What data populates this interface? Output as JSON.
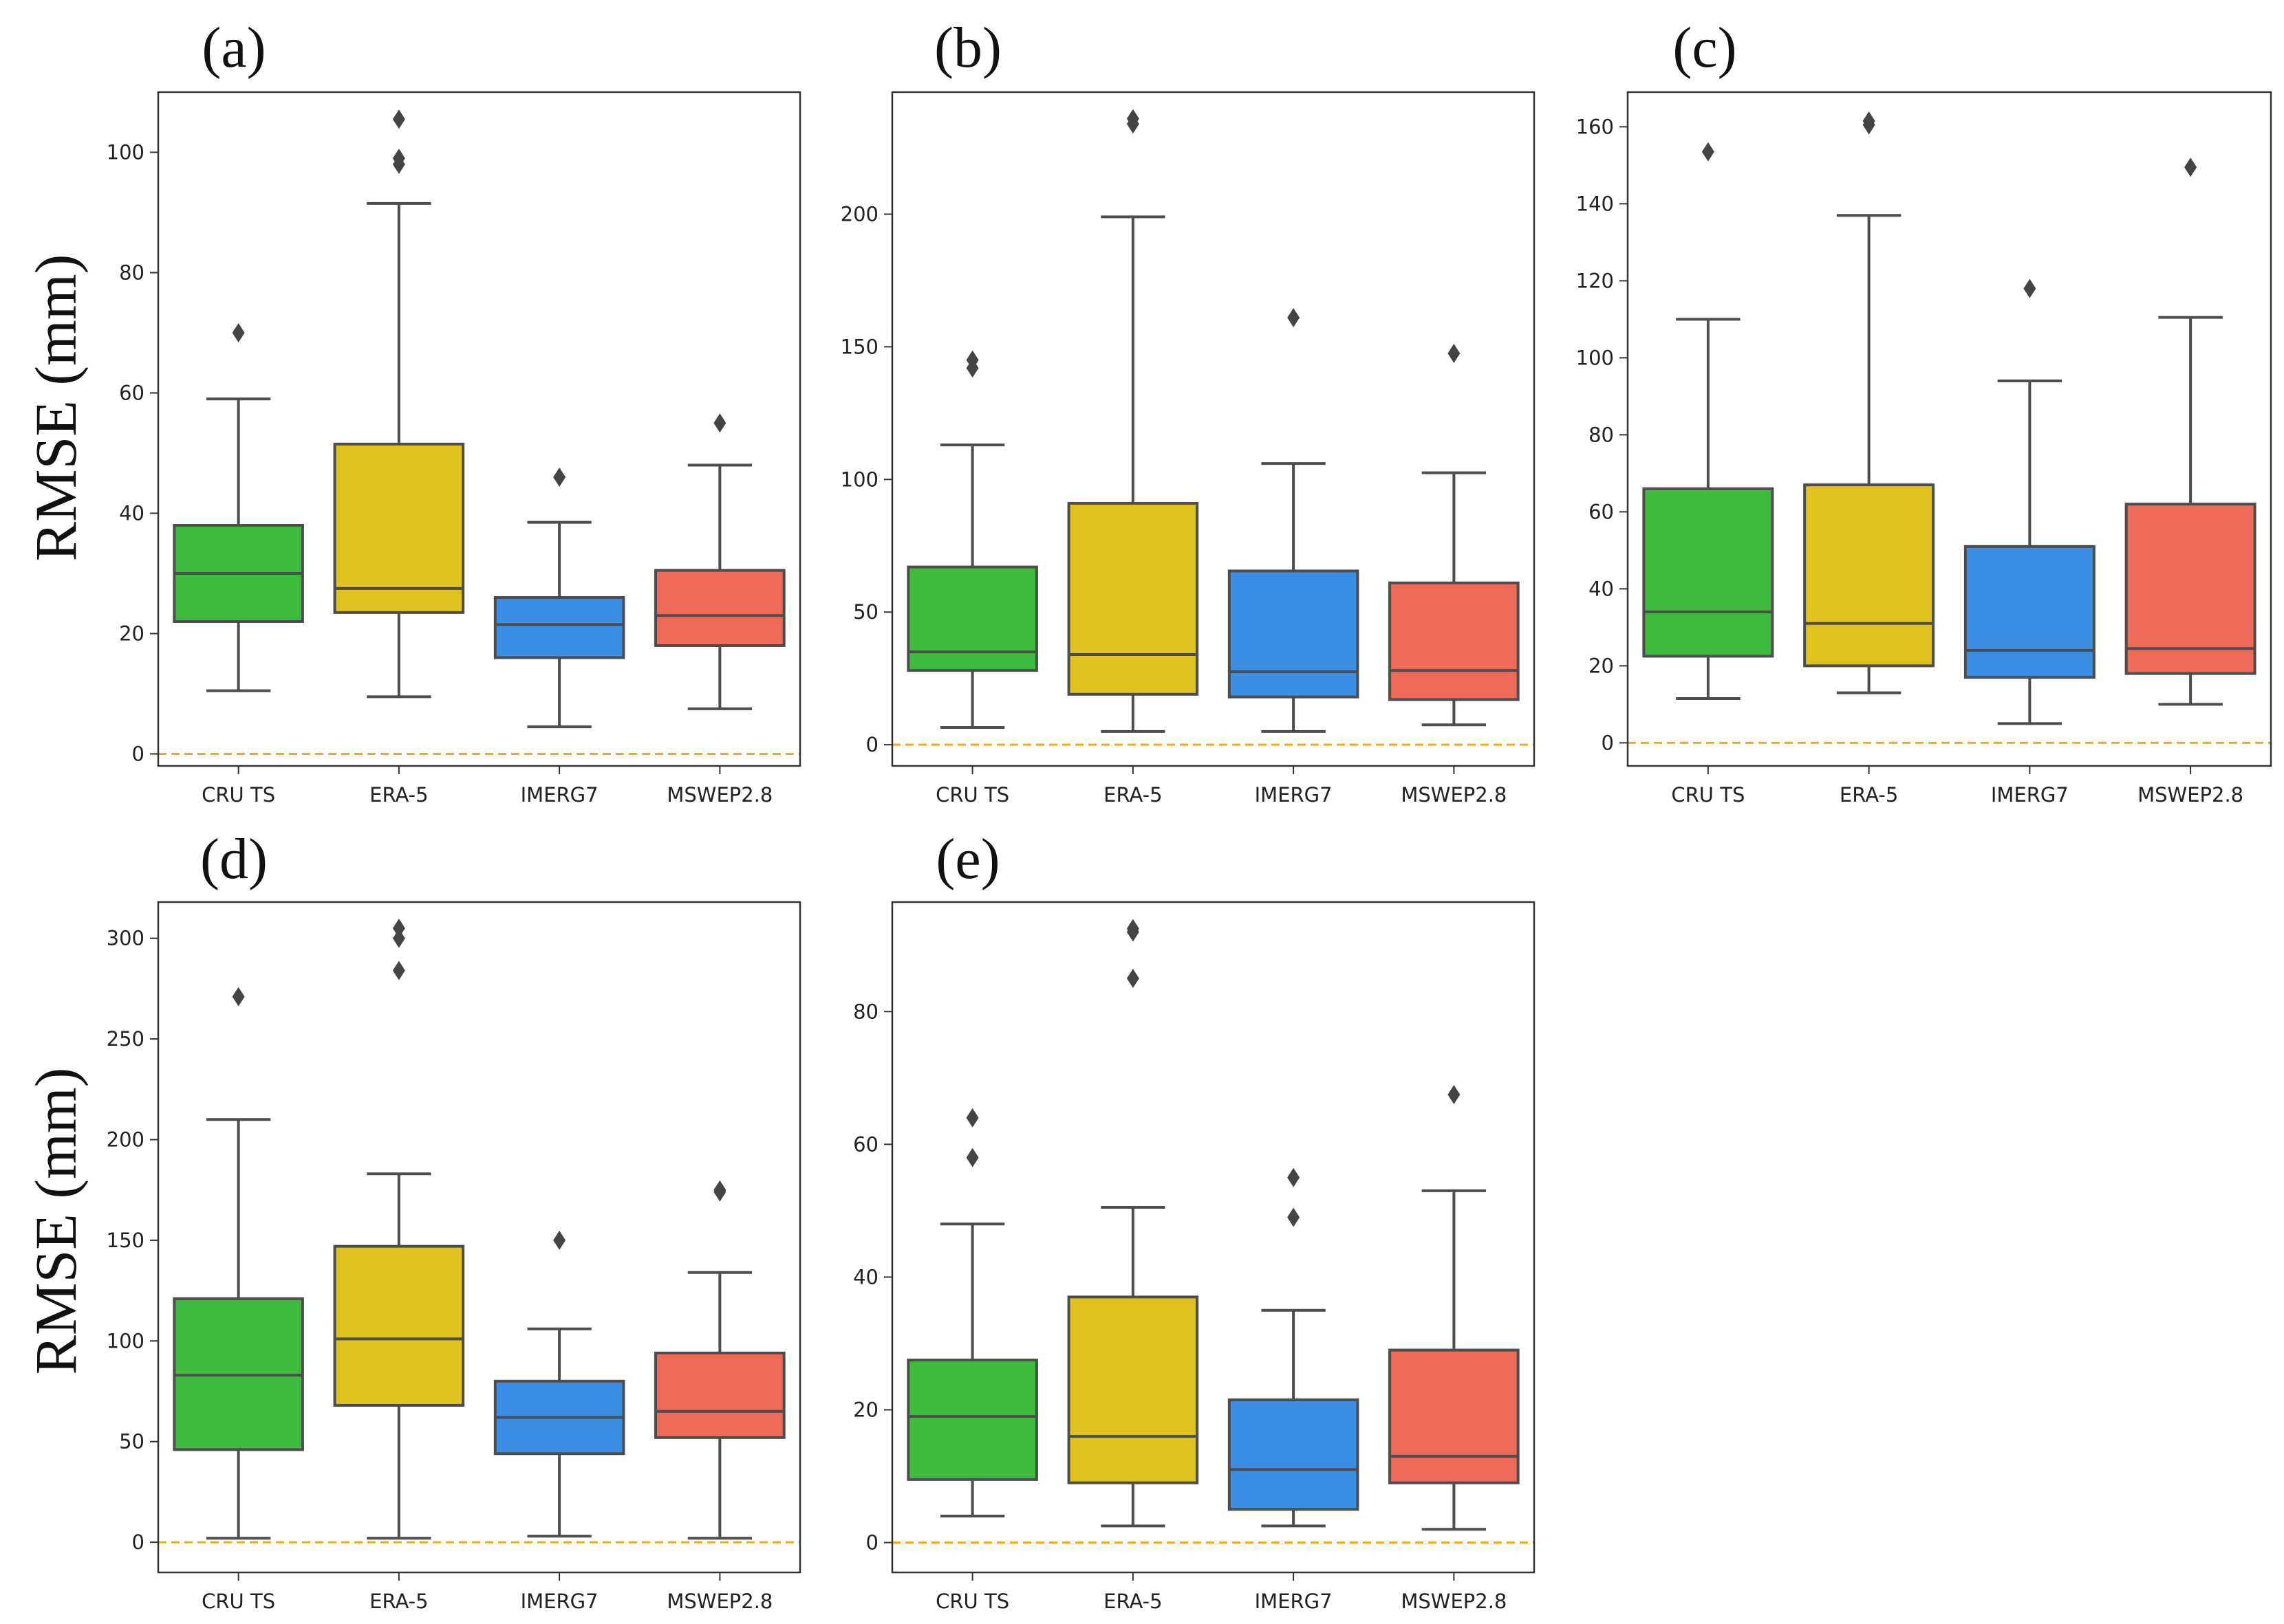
{
  "figure": {
    "ylabel": "RMSE (mm)",
    "colors": {
      "CRU TS": "#3dbb3d",
      "ERA-5": "#e0c21f",
      "IMERG7": "#3a8ee6",
      "MSWEP2.8": "#ec6a57",
      "reference_line": "#f5a623",
      "box_edge": "#4d4d4d",
      "frame": "#333333"
    }
  },
  "chart_data": [
    {
      "type": "box",
      "panel": "(a)",
      "title": "(a)",
      "categories": [
        "CRU TS",
        "ERA-5",
        "IMERG7",
        "MSWEP2.8"
      ],
      "ylim": [
        -2,
        110
      ],
      "yticks": [
        0,
        20,
        40,
        60,
        80,
        100
      ],
      "ylabel": "RMSE (mm)",
      "reference_line": 0,
      "boxes": [
        {
          "name": "CRU TS",
          "whisker_low": 10.5,
          "q1": 22,
          "median": 30,
          "q3": 38,
          "whisker_high": 59,
          "outliers": [
            70
          ]
        },
        {
          "name": "ERA-5",
          "whisker_low": 9.5,
          "q1": 23.5,
          "median": 27.5,
          "q3": 51.5,
          "whisker_high": 91.5,
          "outliers": [
            98,
            99,
            105.5
          ]
        },
        {
          "name": "IMERG7",
          "whisker_low": 4.5,
          "q1": 16,
          "median": 21.5,
          "q3": 26,
          "whisker_high": 38.5,
          "outliers": [
            46
          ]
        },
        {
          "name": "MSWEP2.8",
          "whisker_low": 7.5,
          "q1": 18,
          "median": 23,
          "q3": 30.5,
          "whisker_high": 48,
          "outliers": [
            55
          ]
        }
      ]
    },
    {
      "type": "box",
      "panel": "(b)",
      "title": "(b)",
      "categories": [
        "CRU TS",
        "ERA-5",
        "IMERG7",
        "MSWEP2.8"
      ],
      "ylim": [
        -8,
        246
      ],
      "yticks": [
        0,
        50,
        100,
        150,
        200
      ],
      "ylabel": "",
      "reference_line": 0,
      "boxes": [
        {
          "name": "CRU TS",
          "whisker_low": 6.5,
          "q1": 28,
          "median": 35,
          "q3": 67,
          "whisker_high": 113,
          "outliers": [
            142,
            145
          ]
        },
        {
          "name": "ERA-5",
          "whisker_low": 5,
          "q1": 19,
          "median": 34,
          "q3": 91,
          "whisker_high": 199,
          "outliers": [
            234,
            236
          ]
        },
        {
          "name": "IMERG7",
          "whisker_low": 5,
          "q1": 18,
          "median": 27.5,
          "q3": 65.5,
          "whisker_high": 106,
          "outliers": [
            161
          ]
        },
        {
          "name": "MSWEP2.8",
          "whisker_low": 7.5,
          "q1": 17,
          "median": 28,
          "q3": 61,
          "whisker_high": 102.5,
          "outliers": [
            147.5
          ]
        }
      ]
    },
    {
      "type": "box",
      "panel": "(c)",
      "title": "(c)",
      "categories": [
        "CRU TS",
        "ERA-5",
        "IMERG7",
        "MSWEP2.8"
      ],
      "ylim": [
        -6,
        169
      ],
      "yticks": [
        0,
        20,
        40,
        60,
        80,
        100,
        120,
        140,
        160
      ],
      "ylabel": "",
      "reference_line": 0,
      "boxes": [
        {
          "name": "CRU TS",
          "whisker_low": 11.5,
          "q1": 22.5,
          "median": 34,
          "q3": 66,
          "whisker_high": 110,
          "outliers": [
            153.5
          ]
        },
        {
          "name": "ERA-5",
          "whisker_low": 13,
          "q1": 20,
          "median": 31,
          "q3": 67,
          "whisker_high": 137,
          "outliers": [
            160.5,
            161.5
          ]
        },
        {
          "name": "IMERG7",
          "whisker_low": 5,
          "q1": 17,
          "median": 24,
          "q3": 51,
          "whisker_high": 94,
          "outliers": [
            118
          ]
        },
        {
          "name": "MSWEP2.8",
          "whisker_low": 10,
          "q1": 18,
          "median": 24.5,
          "q3": 62,
          "whisker_high": 110.5,
          "outliers": [
            149.5
          ]
        }
      ]
    },
    {
      "type": "box",
      "panel": "(d)",
      "title": "(d)",
      "categories": [
        "CRU TS",
        "ERA-5",
        "IMERG7",
        "MSWEP2.8"
      ],
      "ylim": [
        -15,
        318
      ],
      "yticks": [
        0,
        50,
        100,
        150,
        200,
        250,
        300
      ],
      "ylabel": "RMSE (mm)",
      "reference_line": 0,
      "boxes": [
        {
          "name": "CRU TS",
          "whisker_low": 2,
          "q1": 46,
          "median": 83,
          "q3": 121,
          "whisker_high": 210,
          "outliers": [
            271
          ]
        },
        {
          "name": "ERA-5",
          "whisker_low": 2,
          "q1": 68,
          "median": 101,
          "q3": 147,
          "whisker_high": 183,
          "outliers": [
            284,
            300,
            305
          ]
        },
        {
          "name": "IMERG7",
          "whisker_low": 3,
          "q1": 44,
          "median": 62,
          "q3": 80,
          "whisker_high": 106,
          "outliers": [
            150
          ]
        },
        {
          "name": "MSWEP2.8",
          "whisker_low": 2,
          "q1": 52,
          "median": 65,
          "q3": 94,
          "whisker_high": 134,
          "outliers": [
            174,
            175
          ]
        }
      ]
    },
    {
      "type": "box",
      "panel": "(e)",
      "title": "(e)",
      "categories": [
        "CRU TS",
        "ERA-5",
        "IMERG7",
        "MSWEP2.8"
      ],
      "ylim": [
        -4.5,
        96.5
      ],
      "yticks": [
        0,
        20,
        40,
        60,
        80
      ],
      "ylabel": "",
      "reference_line": 0,
      "boxes": [
        {
          "name": "CRU TS",
          "whisker_low": 4,
          "q1": 9.5,
          "median": 19,
          "q3": 27.5,
          "whisker_high": 48,
          "outliers": [
            58,
            64
          ]
        },
        {
          "name": "ERA-5",
          "whisker_low": 2.5,
          "q1": 9,
          "median": 16,
          "q3": 37,
          "whisker_high": 50.5,
          "outliers": [
            85,
            92,
            92.5
          ]
        },
        {
          "name": "IMERG7",
          "whisker_low": 2.5,
          "q1": 5,
          "median": 11,
          "q3": 21.5,
          "whisker_high": 35,
          "outliers": [
            49,
            55
          ]
        },
        {
          "name": "MSWEP2.8",
          "whisker_low": 2,
          "q1": 9,
          "median": 13,
          "q3": 29,
          "whisker_high": 53,
          "outliers": [
            67.5
          ]
        }
      ]
    }
  ]
}
